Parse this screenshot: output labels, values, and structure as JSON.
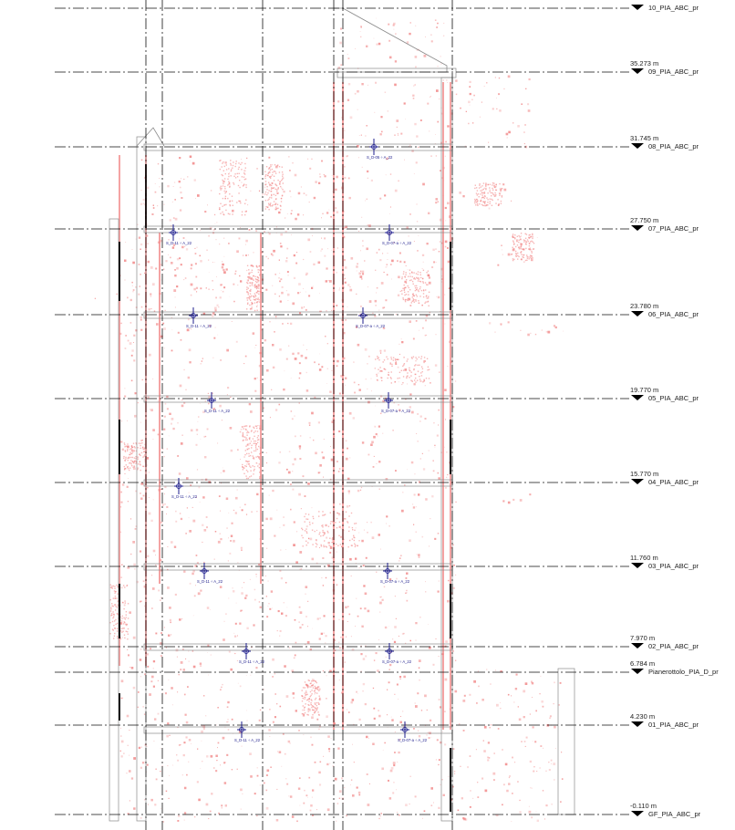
{
  "levels": [
    {
      "name": "10_PIA_ABC_pr",
      "elevation": ""
    },
    {
      "name": "09_PIA_ABC_pr",
      "elevation": "35.273 m"
    },
    {
      "name": "08_PIA_ABC_pr",
      "elevation": "31.745 m"
    },
    {
      "name": "07_PIA_ABC_pr",
      "elevation": "27.750 m"
    },
    {
      "name": "06_PIA_ABC_pr",
      "elevation": "23.780 m"
    },
    {
      "name": "05_PIA_ABC_pr",
      "elevation": "19.770 m"
    },
    {
      "name": "04_PIA_ABC_pr",
      "elevation": "15.770 m"
    },
    {
      "name": "03_PIA_ABC_pr",
      "elevation": "11.760 m"
    },
    {
      "name": "02_PIA_ABC_pr",
      "elevation": "7.970 m"
    },
    {
      "name": "Pianerottolo_PIA_D_pr",
      "elevation": "6.784 m"
    },
    {
      "name": "01_PIA_ABC_pr",
      "elevation": "4.230 m"
    },
    {
      "name": "GF_PIA_ABC_pr",
      "elevation": "-0.110 m"
    }
  ],
  "section_tags": [
    {
      "label": "S_D-05 ÷ A_22"
    },
    {
      "label": "S_D-11 ÷ A_22"
    },
    {
      "label": "S_D-07-a ÷ A_22"
    },
    {
      "label": "S_D-11 ÷ A_22"
    },
    {
      "label": "S_D-07-a ÷ A_22"
    },
    {
      "label": "S_D-11 ÷ A_22"
    },
    {
      "label": "S_D-07-a ÷ A_22"
    },
    {
      "label": "S_D-11 ÷ A_22"
    },
    {
      "label": "S_D-11 ÷ A_22"
    },
    {
      "label": "S_D-07-a ÷ A_22"
    },
    {
      "label": "S_D-11 ÷ A_22"
    },
    {
      "label": "S_D-07-a ÷ A_22"
    },
    {
      "label": "S_D-11 ÷ A_22"
    },
    {
      "label": "S_D-07-a ÷ A_22"
    }
  ],
  "colors": {
    "level_line": "#111111",
    "grid_line": "#111111",
    "walls": "#8a8a8a",
    "point_cloud": "#f07c7c",
    "tag": "#1c1c8c"
  }
}
